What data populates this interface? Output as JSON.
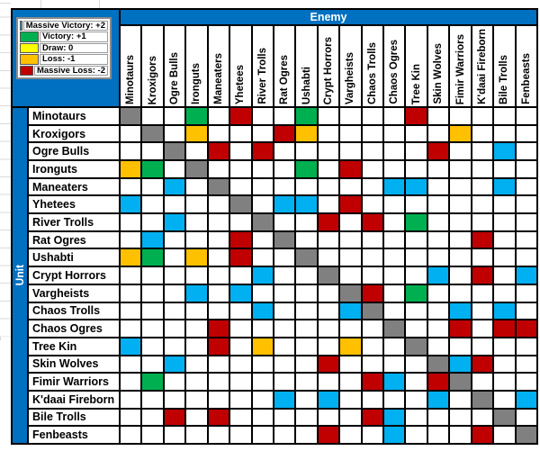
{
  "legend": {
    "items": [
      {
        "label": "Massive Victory: +2",
        "color": "#00B0F0"
      },
      {
        "label": "Victory: +1",
        "color": "#00B050"
      },
      {
        "label": "Draw: 0",
        "color": "#FFFF00"
      },
      {
        "label": "Loss: -1",
        "color": "#FFC000"
      },
      {
        "label": "Massive Loss: -2",
        "color": "#C00000"
      }
    ]
  },
  "axes": {
    "column_header": "Enemy",
    "row_header": "Unit",
    "header_bg": "#0070C0",
    "header_text_color": "#FFFFFF"
  },
  "units": [
    "Minotaurs",
    "Kroxigors",
    "Ogre Bulls",
    "Ironguts",
    "Maneaters",
    "Yhetees",
    "River Trolls",
    "Rat Ogres",
    "Ushabti",
    "Crypt Horrors",
    "Vargheists",
    "Chaos Trolls",
    "Chaos Ogres",
    "Tree Kin",
    "Skin Wolves",
    "Fimir Warriors",
    "K'daai Fireborn",
    "Bile Trolls",
    "Fenbeasts"
  ],
  "matrix": {
    "code_meanings": {
      "C": "massive_victory_+2",
      "G": "victory_+1",
      "Y": "draw_0",
      "O": "loss_-1",
      "R": "massive_loss_-2",
      "X": "self_matchup",
      "W": "blank"
    },
    "cell_colors": {
      "C": "#00B0F0",
      "G": "#00B050",
      "Y": "#FFFF00",
      "O": "#FFC000",
      "R": "#C00000",
      "X": "#808080",
      "W": "#FFFFFF"
    },
    "rows": [
      "XWWGWRWWGWWWWRWWWWW",
      "WXWOWWWROWWWWWWOWWW",
      "WWXWRWRWWWWWWWRWWCW",
      "OGWXWWWWGWRWWWWWWWW",
      "WWCWXWWWWWWWCCWWWCW",
      "CWWWWXWCCWRWWWWWWWW",
      "WWCWWWXWWRWRWGWWWWW",
      "WCWWWRWXWWWWWWWWRWW",
      "OGWOWRWWXWWWWWWWWWW",
      "WWWWWWCWWXWWWWCWRWC",
      "WWWCWCWWWWXRWGWWWWW",
      "WWWWWWCWWWCXWWWCWCW",
      "WWWWRWWWWWWWXWWRWRR",
      "CWWWRWOWWWOWWXWWWWW",
      "WWCWWWWWWRWWWWXCRWW",
      "WGWWWWWWWWWRCWRXWWW",
      "WWWWWWWCWCWWWWCWXWC",
      "WWRWRWWWWWWRCWWWWXW",
      "WWWWWWWWWRWWCWWWRWX"
    ]
  }
}
